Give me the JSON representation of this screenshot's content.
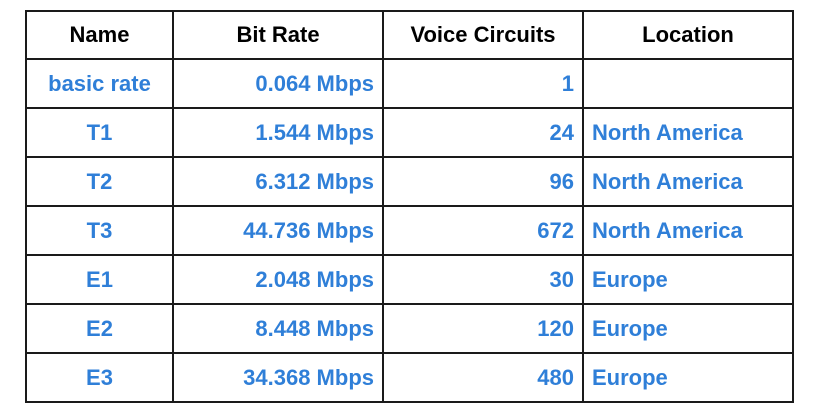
{
  "table": {
    "headers": [
      "Name",
      "Bit Rate",
      "Voice Circuits",
      "Location"
    ],
    "rows": [
      {
        "name": "basic rate",
        "bit_rate": "0.064 Mbps",
        "voice_circuits": "1",
        "location": ""
      },
      {
        "name": "T1",
        "bit_rate": "1.544 Mbps",
        "voice_circuits": "24",
        "location": "North America"
      },
      {
        "name": "T2",
        "bit_rate": "6.312 Mbps",
        "voice_circuits": "96",
        "location": "North America"
      },
      {
        "name": "T3",
        "bit_rate": "44.736 Mbps",
        "voice_circuits": "672",
        "location": "North America"
      },
      {
        "name": "E1",
        "bit_rate": "2.048 Mbps",
        "voice_circuits": "30",
        "location": "Europe"
      },
      {
        "name": "E2",
        "bit_rate": "8.448 Mbps",
        "voice_circuits": "120",
        "location": "Europe"
      },
      {
        "name": "E3",
        "bit_rate": "34.368 Mbps",
        "voice_circuits": "480",
        "location": "Europe"
      }
    ]
  },
  "colors": {
    "header_text": "#000000",
    "cell_text": "#2f7fd8",
    "border": "#1a1a1a"
  }
}
